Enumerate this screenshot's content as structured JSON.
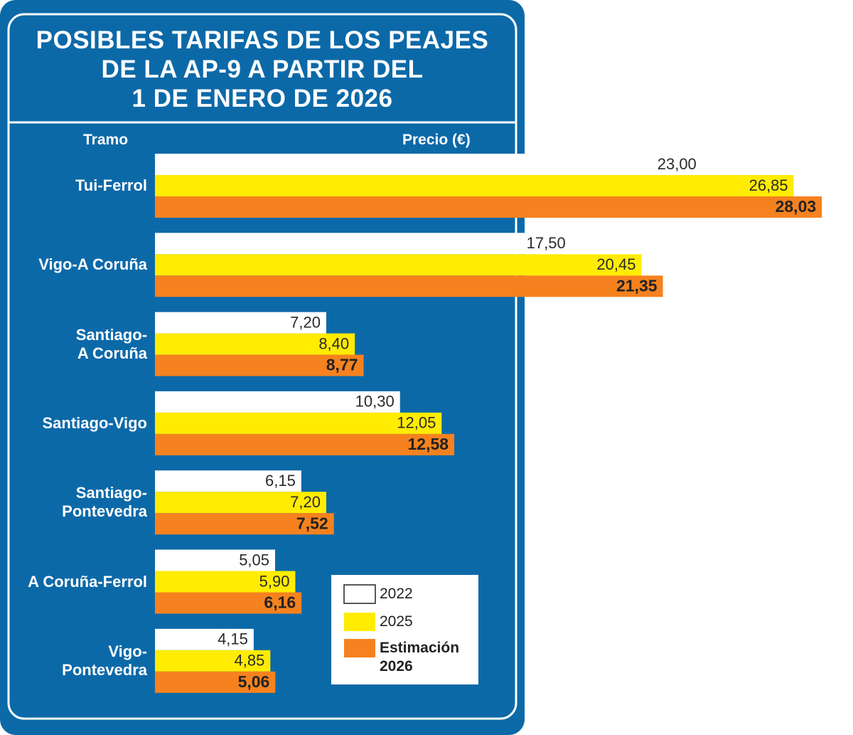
{
  "chart_data": {
    "type": "bar",
    "title": "POSIBLES TARIFAS DE LOS PEAJES\nDE LA AP-9 A PARTIR DEL\n1 DE ENERO DE 2026",
    "category_header": "Tramo",
    "value_header": "Precio (€)",
    "categories": [
      "Tui-Ferrol",
      "Vigo-A Coruña",
      "Santiago-\nA Coruña",
      "Santiago-Vigo",
      "Santiago-\nPontevedra",
      "A Coruña-Ferrol",
      "Vigo-\nPontevedra"
    ],
    "series": [
      {
        "name": "2022",
        "color": "#ffffff",
        "values": [
          23.0,
          17.5,
          7.2,
          10.3,
          6.15,
          5.05,
          4.15
        ],
        "value_labels": [
          "23,00",
          "17,50",
          "7,20",
          "10,30",
          "6,15",
          "5,05",
          "4,15"
        ]
      },
      {
        "name": "2025",
        "color": "#ffec00",
        "values": [
          26.85,
          20.45,
          8.4,
          12.05,
          7.2,
          5.9,
          4.85
        ],
        "value_labels": [
          "26,85",
          "20,45",
          "8,40",
          "12,05",
          "7,20",
          "5,90",
          "4,85"
        ]
      },
      {
        "name": "Estimación\n2026",
        "color": "#f5821f",
        "values": [
          28.03,
          21.35,
          8.77,
          12.58,
          7.52,
          6.16,
          5.06
        ],
        "value_labels": [
          "28,03",
          "21,35",
          "8,77",
          "12,58",
          "7,52",
          "6,16",
          "5,06"
        ]
      }
    ]
  }
}
